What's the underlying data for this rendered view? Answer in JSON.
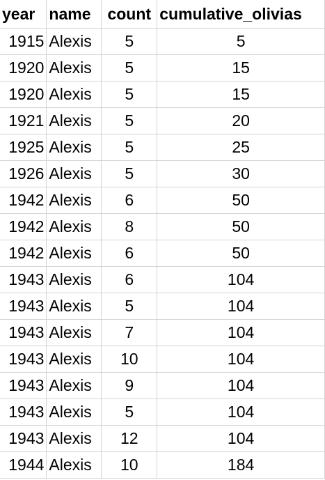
{
  "headers": {
    "year": "year",
    "name": "name",
    "count": "count",
    "cumulative": "cumulative_olivias"
  },
  "rows": [
    {
      "year": "1915",
      "name": "Alexis",
      "count": "5",
      "cumulative": "5"
    },
    {
      "year": "1920",
      "name": "Alexis",
      "count": "5",
      "cumulative": "15"
    },
    {
      "year": "1920",
      "name": "Alexis",
      "count": "5",
      "cumulative": "15"
    },
    {
      "year": "1921",
      "name": "Alexis",
      "count": "5",
      "cumulative": "20"
    },
    {
      "year": "1925",
      "name": "Alexis",
      "count": "5",
      "cumulative": "25"
    },
    {
      "year": "1926",
      "name": "Alexis",
      "count": "5",
      "cumulative": "30"
    },
    {
      "year": "1942",
      "name": "Alexis",
      "count": "6",
      "cumulative": "50"
    },
    {
      "year": "1942",
      "name": "Alexis",
      "count": "8",
      "cumulative": "50"
    },
    {
      "year": "1942",
      "name": "Alexis",
      "count": "6",
      "cumulative": "50"
    },
    {
      "year": "1943",
      "name": "Alexis",
      "count": "6",
      "cumulative": "104"
    },
    {
      "year": "1943",
      "name": "Alexis",
      "count": "5",
      "cumulative": "104"
    },
    {
      "year": "1943",
      "name": "Alexis",
      "count": "7",
      "cumulative": "104"
    },
    {
      "year": "1943",
      "name": "Alexis",
      "count": "10",
      "cumulative": "104"
    },
    {
      "year": "1943",
      "name": "Alexis",
      "count": "9",
      "cumulative": "104"
    },
    {
      "year": "1943",
      "name": "Alexis",
      "count": "5",
      "cumulative": "104"
    },
    {
      "year": "1943",
      "name": "Alexis",
      "count": "12",
      "cumulative": "104"
    },
    {
      "year": "1944",
      "name": "Alexis",
      "count": "10",
      "cumulative": "184"
    }
  ]
}
